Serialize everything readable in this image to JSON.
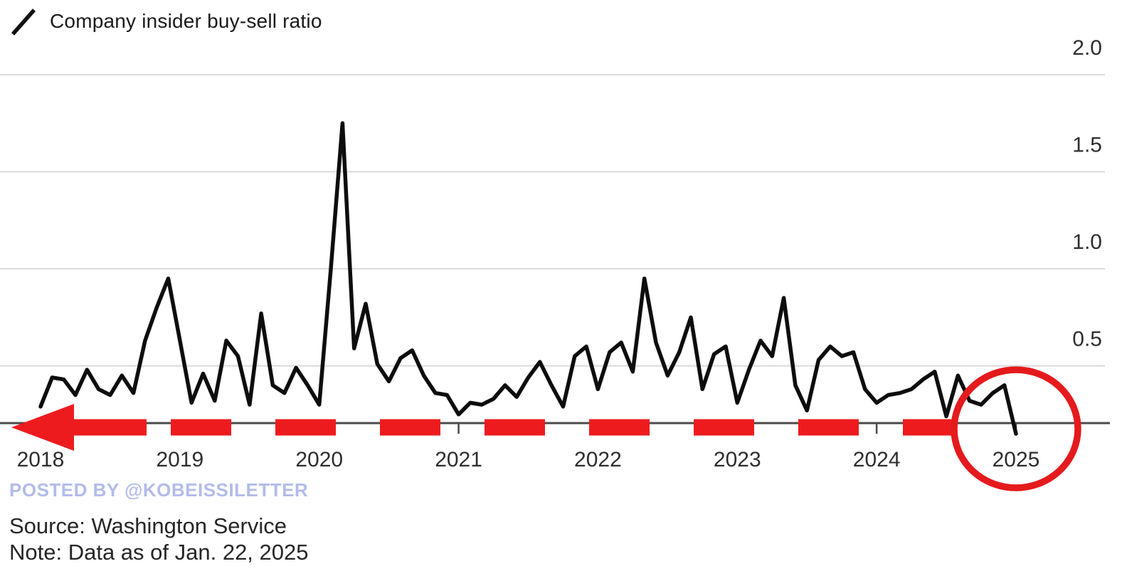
{
  "legend": {
    "label": "Company insider buy-sell ratio"
  },
  "watermark": "POSTED BY @KOBEISSILETTER",
  "footer": {
    "source": "Source: Washington Service",
    "note": "Note: Data as of Jan. 22, 2025"
  },
  "colors": {
    "line": "#0d0d0d",
    "grid": "#d9d9d9",
    "axis": "#4a4a4a",
    "tick_text": "#2e2e2e",
    "annotation_red": "#ee1b1e",
    "circle_red": "#e51a1c",
    "watermark": "#b2bbea"
  },
  "chart_data": {
    "type": "line",
    "title": "Company insider buy-sell ratio",
    "frequency": "monthly",
    "x_start": "2018-01",
    "x_end": "2025-01",
    "x_tick_labels": [
      "2018",
      "2019",
      "2020",
      "2021",
      "2022",
      "2023",
      "2024",
      "2025"
    ],
    "y_ticks": [
      2.0,
      1.5,
      1.0,
      0.5
    ],
    "y_tick_labels": [
      "2.0",
      "1.5",
      "1.0",
      "0.5"
    ],
    "ylim": [
      0.2,
      2.0
    ],
    "grid": true,
    "legend_position": "top-left",
    "y_axis_side": "right",
    "series": [
      {
        "name": "Company insider buy-sell ratio",
        "values": [
          0.29,
          0.44,
          0.43,
          0.35,
          0.48,
          0.38,
          0.35,
          0.45,
          0.36,
          0.63,
          0.8,
          0.95,
          0.63,
          0.31,
          0.46,
          0.32,
          0.63,
          0.55,
          0.3,
          0.77,
          0.4,
          0.36,
          0.49,
          0.4,
          0.3,
          1.0,
          1.75,
          0.59,
          0.82,
          0.51,
          0.42,
          0.54,
          0.58,
          0.45,
          0.36,
          0.35,
          0.25,
          0.31,
          0.3,
          0.33,
          0.4,
          0.34,
          0.44,
          0.52,
          0.4,
          0.29,
          0.55,
          0.6,
          0.38,
          0.57,
          0.62,
          0.47,
          0.95,
          0.62,
          0.45,
          0.57,
          0.75,
          0.38,
          0.56,
          0.6,
          0.31,
          0.48,
          0.63,
          0.55,
          0.85,
          0.4,
          0.27,
          0.53,
          0.6,
          0.55,
          0.57,
          0.38,
          0.31,
          0.35,
          0.36,
          0.38,
          0.43,
          0.47,
          0.24,
          0.45,
          0.32,
          0.3,
          0.36,
          0.4,
          0.15
        ]
      }
    ],
    "annotations": [
      {
        "type": "arrow",
        "style": "dashed",
        "direction": "left",
        "color": "#ee1b1e",
        "position": "along x-axis baseline"
      },
      {
        "type": "circle",
        "color": "#e51a1c",
        "around": "2025 label and final data point (Jan 2025)"
      }
    ]
  }
}
